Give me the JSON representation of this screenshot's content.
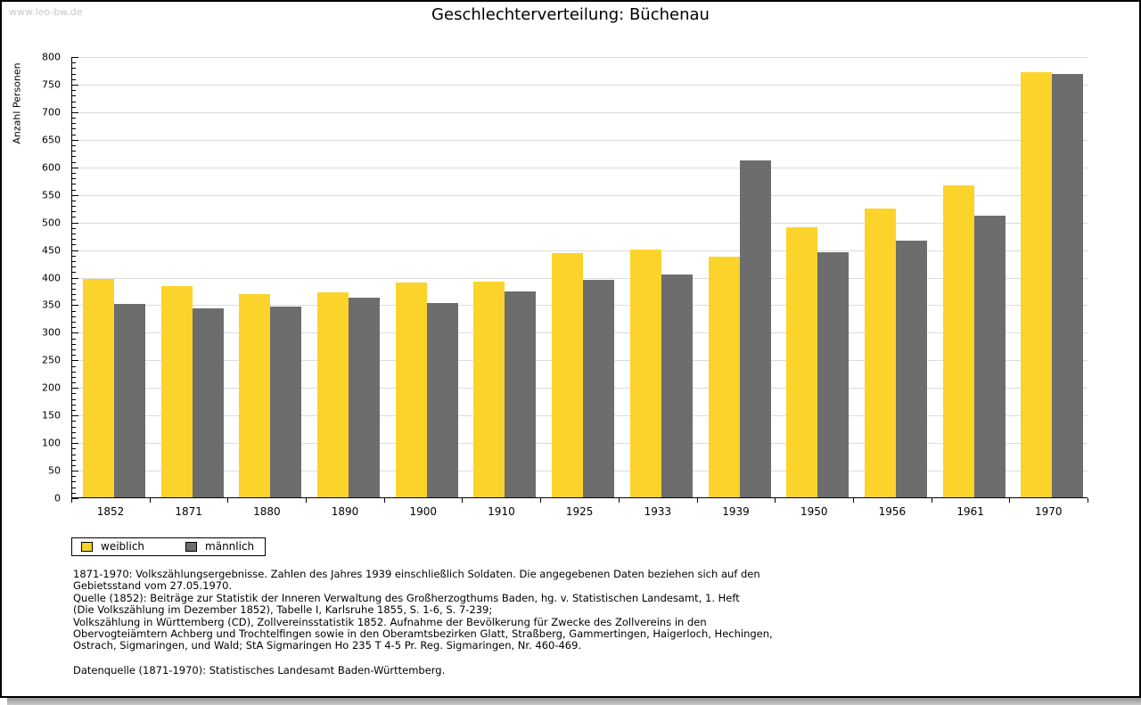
{
  "watermark": "www.leo-bw.de",
  "chart_data": {
    "type": "bar",
    "title": "Geschlechterverteilung: Büchenau",
    "ylabel": "Anzahl Personen",
    "xlabel": "",
    "categories": [
      "1852",
      "1871",
      "1880",
      "1890",
      "1900",
      "1910",
      "1925",
      "1933",
      "1939",
      "1950",
      "1956",
      "1961",
      "1970"
    ],
    "series": [
      {
        "name": "weiblich",
        "color": "#fcd32b",
        "values": [
          396,
          383,
          368,
          371,
          389,
          391,
          443,
          450,
          436,
          489,
          524,
          565,
          771
        ]
      },
      {
        "name": "männlich",
        "color": "#6d6d6d",
        "values": [
          350,
          342,
          346,
          362,
          352,
          373,
          394,
          404,
          611,
          444,
          465,
          510,
          767
        ]
      }
    ],
    "ylim": [
      0,
      800
    ],
    "ytick_step": 50,
    "minor_tick_step": 10,
    "grid": true,
    "gridline_color": "#dcdcdc",
    "legend_position": "bottom-left"
  },
  "footnotes": {
    "lines": [
      "1871-1970: Volkszählungsergebnisse. Zahlen des Jahres 1939 einschließlich Soldaten. Die angegebenen Daten beziehen sich auf den",
      "Gebietsstand vom 27.05.1970.",
      "Quelle (1852): Beiträge zur Statistik der Inneren Verwaltung des Großherzogthums Baden, hg. v. Statistischen Landesamt, 1. Heft",
      "(Die Volkszählung im Dezember 1852), Tabelle I, Karlsruhe 1855, S. 1-6, S. 7-239;",
      "Volkszählung in Württemberg (CD), Zollvereinsstatistik 1852. Aufnahme der Bevölkerung für Zwecke des Zollvereins in den",
      "Obervogteiämtern Achberg und Trochtelfingen sowie in den Oberamtsbezirken Glatt, Straßberg, Gammertingen, Haigerloch, Hechingen,",
      "Ostrach, Sigmaringen, und Wald; StA Sigmaringen Ho 235 T 4-5 Pr. Reg. Sigmaringen, Nr. 460-469."
    ],
    "datasource": "Datenquelle (1871-1970): Statistisches Landesamt Baden-Württemberg."
  }
}
